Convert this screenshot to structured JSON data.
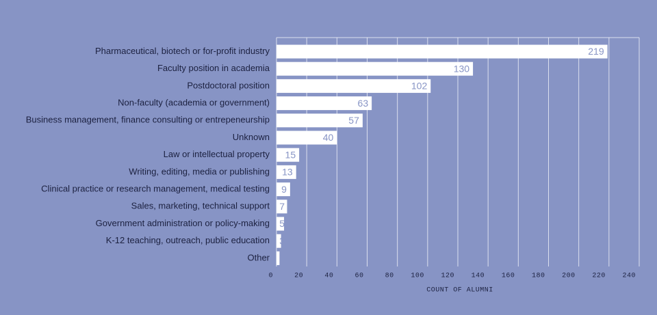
{
  "chart_data": {
    "type": "bar",
    "orientation": "horizontal",
    "categories": [
      "Pharmaceutical, biotech or for-profit industry",
      "Faculty position in academia",
      "Postdoctoral position",
      "Non-faculty (academia or government)",
      "Business management, finance consulting or entrepeneurship",
      "Unknown",
      "Law or intellectual property",
      "Writing, editing, media or publishing",
      "Clinical practice or research management, medical testing",
      "Sales, marketing, technical support",
      "Government administration or policy-making",
      "K-12 teaching, outreach, public education",
      "Other"
    ],
    "values": [
      219,
      130,
      102,
      63,
      57,
      40,
      15,
      13,
      9,
      7,
      5,
      3,
      2
    ],
    "color": "#ffffff",
    "xlabel": "COUNT OF ALUMNI",
    "xlim": [
      0,
      240
    ],
    "xticks": [
      0,
      20,
      40,
      60,
      80,
      100,
      120,
      140,
      160,
      180,
      200,
      220,
      240
    ],
    "grid": true
  }
}
